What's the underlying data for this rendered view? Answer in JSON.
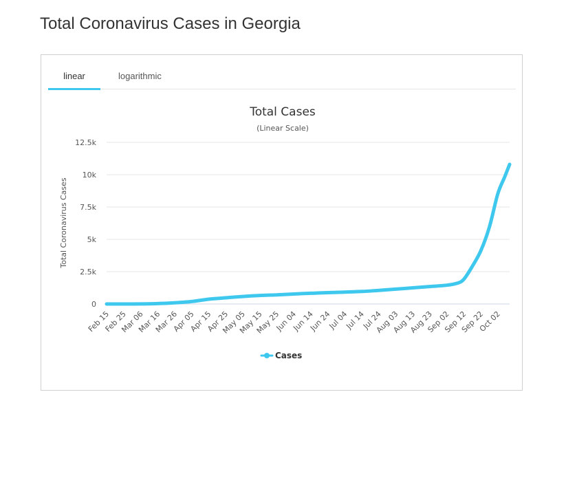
{
  "page": {
    "title": "Total Coronavirus Cases in Georgia"
  },
  "tabs": [
    {
      "label": "linear",
      "active": true
    },
    {
      "label": "logarithmic",
      "active": false
    }
  ],
  "colors": {
    "series": "#3ec8ee",
    "grid": "#e6e6e6",
    "axis": "#ccd6eb"
  },
  "chart_data": {
    "type": "line",
    "title": "Total Cases",
    "subtitle": "(Linear Scale)",
    "ylabel": "Total Coronavirus Cases",
    "xlabel": "",
    "ylim": [
      0,
      12500
    ],
    "yticks": [
      0,
      2500,
      5000,
      7500,
      10000,
      12500
    ],
    "ytick_labels": [
      "0",
      "2.5k",
      "5k",
      "7.5k",
      "10k",
      "12.5k"
    ],
    "x_start": "2020-02-15",
    "x_end": "2020-10-09",
    "xtick_labels": [
      "Feb 15",
      "Feb 25",
      "Mar 06",
      "Mar 16",
      "Mar 26",
      "Apr 05",
      "Apr 15",
      "Apr 25",
      "May 05",
      "May 15",
      "May 25",
      "Jun 04",
      "Jun 14",
      "Jun 24",
      "Jul 04",
      "Jul 14",
      "Jul 24",
      "Aug 03",
      "Aug 13",
      "Aug 23",
      "Sep 02",
      "Sep 12",
      "Sep 22",
      "Oct 02"
    ],
    "grid": true,
    "legend": "bottom-center",
    "series": [
      {
        "name": "Cases",
        "x": [
          "2020-02-15",
          "2020-02-25",
          "2020-03-06",
          "2020-03-16",
          "2020-03-26",
          "2020-04-05",
          "2020-04-15",
          "2020-04-25",
          "2020-05-05",
          "2020-05-15",
          "2020-05-25",
          "2020-06-04",
          "2020-06-14",
          "2020-06-24",
          "2020-07-04",
          "2020-07-14",
          "2020-07-24",
          "2020-08-03",
          "2020-08-13",
          "2020-08-23",
          "2020-09-02",
          "2020-09-08",
          "2020-09-12",
          "2020-09-17",
          "2020-09-22",
          "2020-09-27",
          "2020-10-02",
          "2020-10-06",
          "2020-10-09"
        ],
        "values": [
          0,
          0,
          5,
          30,
          90,
          190,
          370,
          480,
          580,
          660,
          710,
          770,
          830,
          880,
          920,
          970,
          1050,
          1150,
          1250,
          1350,
          1450,
          1600,
          1900,
          2900,
          4100,
          5900,
          8500,
          9800,
          10800
        ]
      }
    ]
  }
}
